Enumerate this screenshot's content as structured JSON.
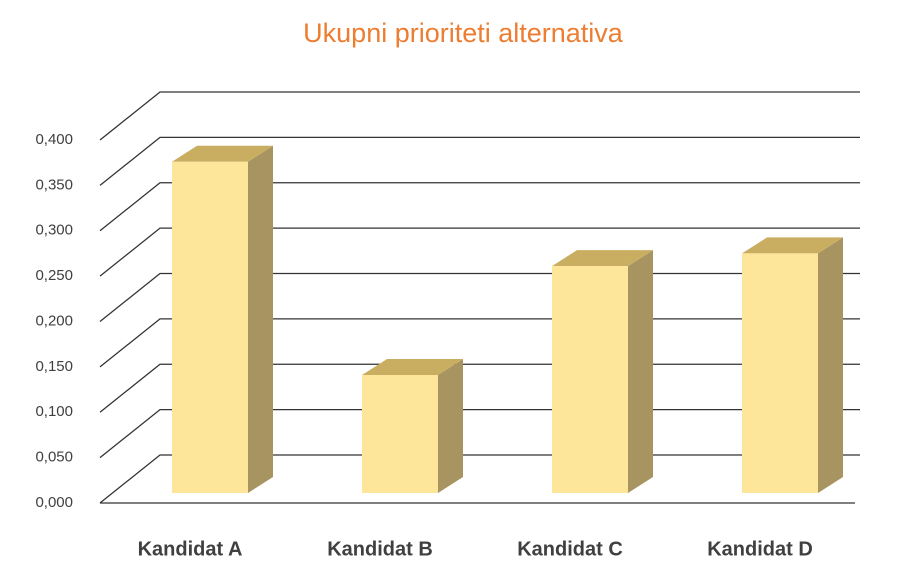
{
  "chart_data": {
    "type": "bar3d",
    "title": "Ukupni prioriteti alternativa",
    "categories": [
      "Kandidat A",
      "Kandidat B",
      "Kandidat C",
      "Kandidat D"
    ],
    "values": [
      0.365,
      0.13,
      0.25,
      0.264
    ],
    "color": "#fde699",
    "ylim": [
      0,
      0.4
    ],
    "yticks": [
      {
        "value": 0,
        "label": "0,000"
      },
      {
        "value": 0.05,
        "label": "0,050"
      },
      {
        "value": 0.1,
        "label": "0,100"
      },
      {
        "value": 0.15,
        "label": "0,150"
      },
      {
        "value": 0.2,
        "label": "0,200"
      },
      {
        "value": 0.25,
        "label": "0,250"
      },
      {
        "value": 0.3,
        "label": "0,300"
      },
      {
        "value": 0.35,
        "label": "0,350"
      },
      {
        "value": 0.4,
        "label": "0,400"
      }
    ],
    "grid": true
  }
}
